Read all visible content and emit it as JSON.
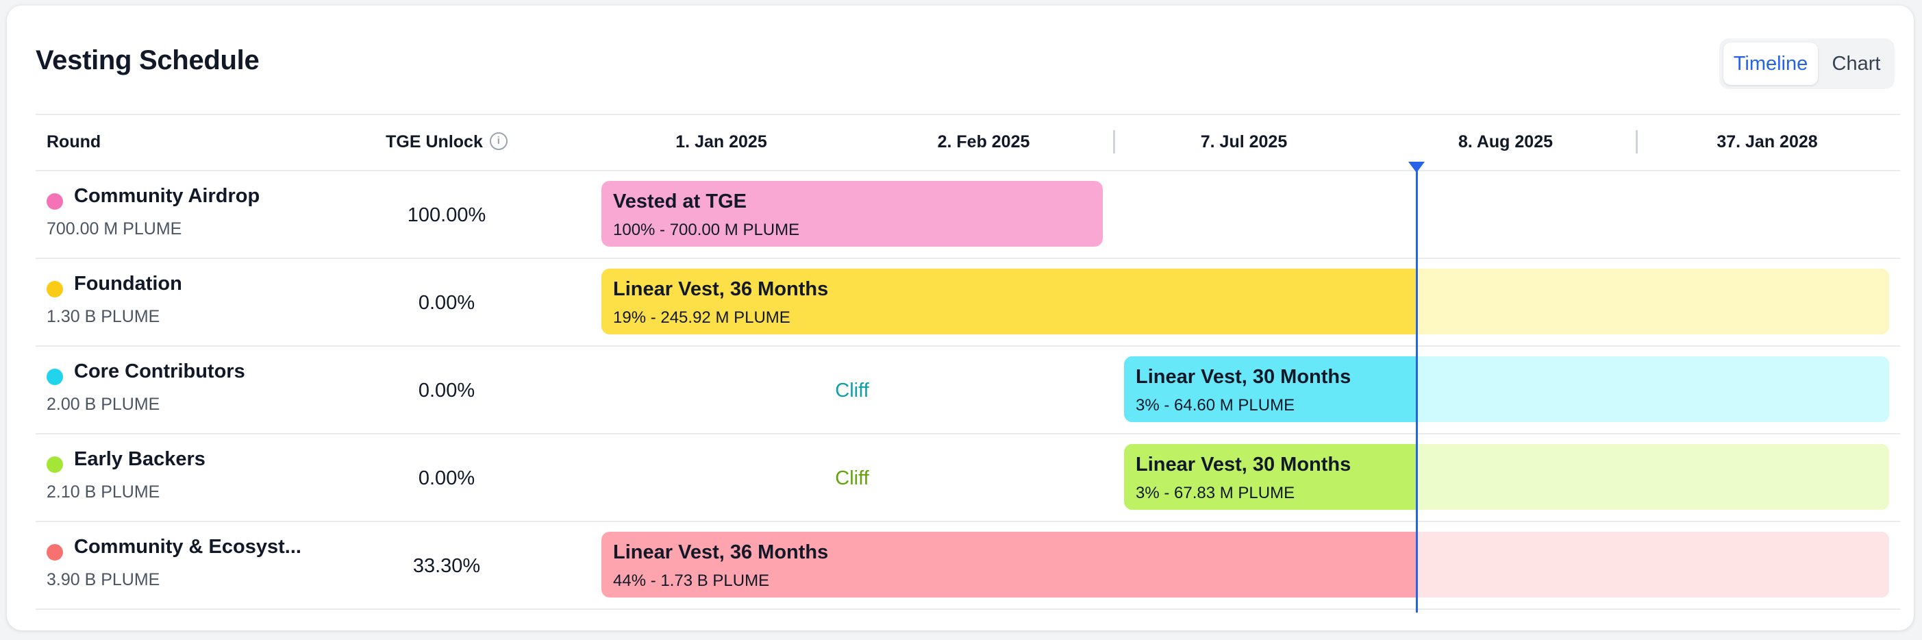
{
  "title": "Vesting Schedule",
  "view_toggle": {
    "timeline": "Timeline",
    "chart": "Chart",
    "active": "Timeline"
  },
  "columns": {
    "round": "Round",
    "tge_unlock": "TGE Unlock",
    "info_icon": "info-icon"
  },
  "timeline_labels": [
    "1. Jan 2025",
    "2. Feb 2025",
    "7. Jul 2025",
    "8. Aug 2025",
    "37. Jan 2028"
  ],
  "colors": {
    "accent": "#2563eb"
  },
  "rounds": [
    {
      "name": "Community Airdrop",
      "amount": "700.00 M PLUME",
      "tge_unlock": "100.00%",
      "dot_color": "#f472b6",
      "bar": {
        "title": "Vested at TGE",
        "detail": "100% - 700.00 M PLUME",
        "color": "#f9a8d4",
        "faded_color": "#fce7f3"
      }
    },
    {
      "name": "Foundation",
      "amount": "1.30 B PLUME",
      "tge_unlock": "0.00%",
      "dot_color": "#facc15",
      "bar": {
        "title": "Linear Vest, 36 Months",
        "detail": "19% - 245.92 M PLUME",
        "color": "#fde047",
        "faded_color": "#fef9c3"
      }
    },
    {
      "name": "Core Contributors",
      "amount": "2.00 B PLUME",
      "tge_unlock": "0.00%",
      "dot_color": "#22d3ee",
      "cliff_label": "Cliff",
      "cliff_color": "#0e9fa8",
      "bar": {
        "title": "Linear Vest, 30 Months",
        "detail": "3% - 64.60 M PLUME",
        "color": "#67e8f9",
        "faded_color": "#cffafe"
      }
    },
    {
      "name": "Early Backers",
      "amount": "2.10 B PLUME",
      "tge_unlock": "0.00%",
      "dot_color": "#a3e635",
      "cliff_label": "Cliff",
      "cliff_color": "#65a30d",
      "bar": {
        "title": "Linear Vest, 30 Months",
        "detail": "3% - 67.83 M PLUME",
        "color": "#bef264",
        "faded_color": "#ecfccb"
      }
    },
    {
      "name": "Community & Ecosyst...",
      "amount": "3.90 B PLUME",
      "tge_unlock": "33.30%",
      "dot_color": "#f87171",
      "bar": {
        "title": "Linear Vest, 36 Months",
        "detail": "44% - 1.73 B PLUME",
        "color": "#fda4af",
        "faded_color": "#ffe4e6"
      }
    }
  ]
}
